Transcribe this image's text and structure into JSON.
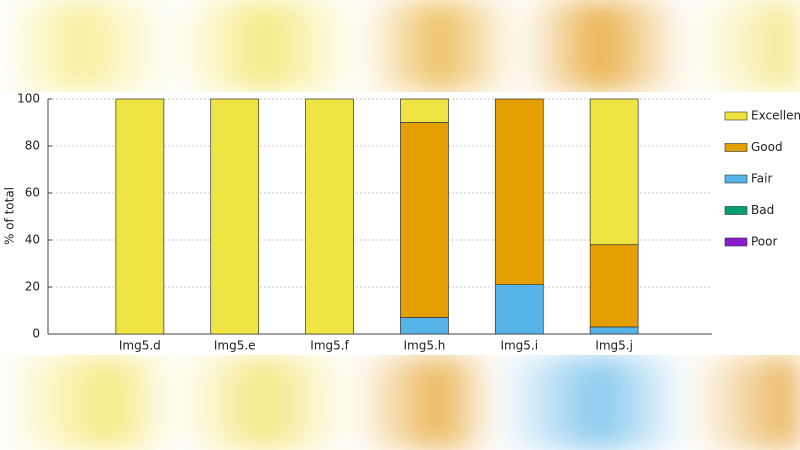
{
  "chart_data": {
    "type": "stacked-bar",
    "ylabel": "% of total",
    "categories": [
      "Img5.d",
      "Img5.e",
      "Img5.f",
      "Img5.h",
      "Img5.i",
      "Img5.j"
    ],
    "series": [
      {
        "name": "Excellent",
        "color": "#f0e442",
        "values": [
          100,
          100,
          100,
          10,
          0,
          62
        ]
      },
      {
        "name": "Good",
        "color": "#e69f00",
        "values": [
          0,
          0,
          0,
          83,
          79,
          35
        ]
      },
      {
        "name": "Fair",
        "color": "#56b4e9",
        "values": [
          0,
          0,
          0,
          7,
          21,
          3
        ]
      },
      {
        "name": "Bad",
        "color": "#009e73",
        "values": [
          0,
          0,
          0,
          0,
          0,
          0
        ]
      },
      {
        "name": "Poor",
        "color": "#8e1ccf",
        "values": [
          0,
          0,
          0,
          0,
          0,
          0
        ]
      }
    ],
    "ylim": [
      0,
      100
    ],
    "yticks": [
      0,
      20,
      40,
      60,
      80,
      100
    ],
    "grid": true,
    "legend": "right"
  }
}
